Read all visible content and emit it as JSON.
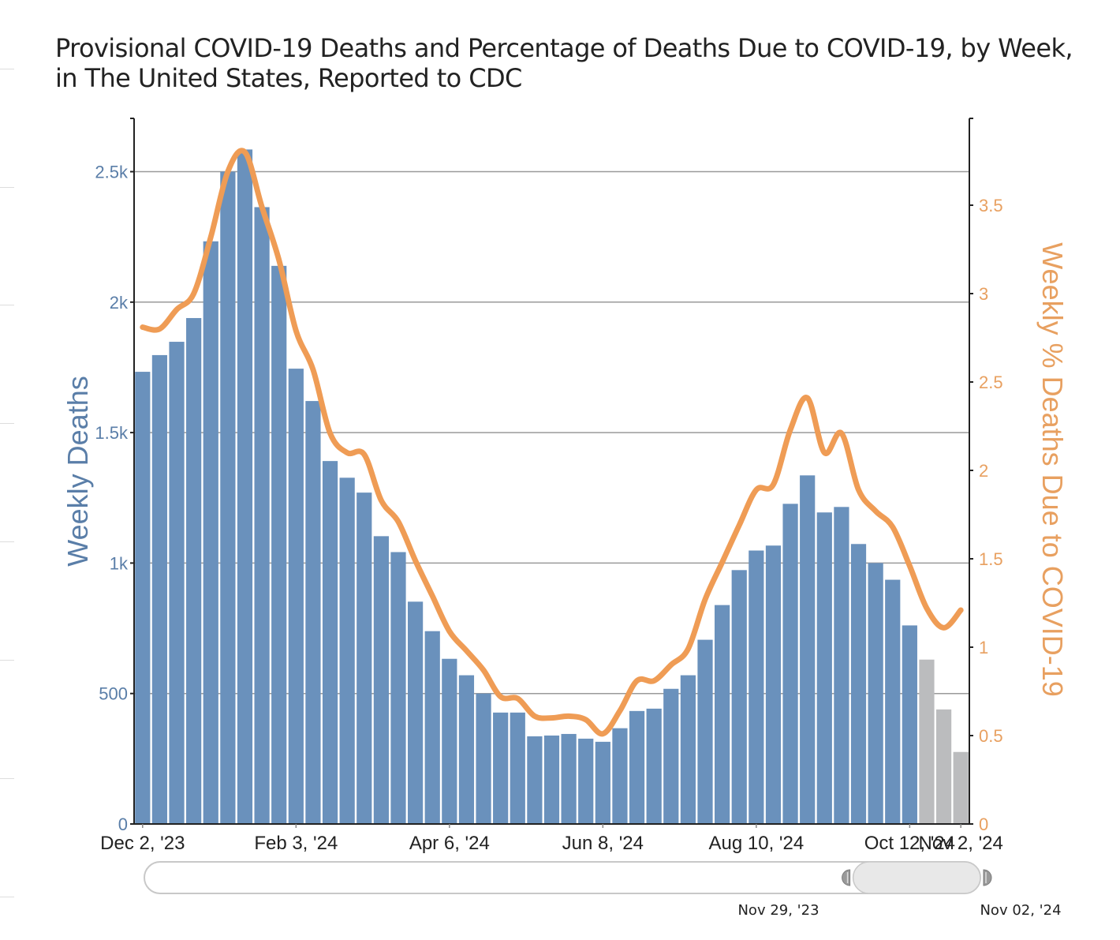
{
  "title": "Provisional COVID-19 Deaths and Percentage of Deaths Due to COVID-19, by Week, in The United States, Reported to CDC",
  "colors": {
    "bar_complete": "#6a91bc",
    "bar_incomplete": "#bbbcbe",
    "line": "#ef9c55",
    "left_axis_text": "#5a7ea8",
    "right_axis_text": "#e8a060",
    "gridline": "#9a9a9a",
    "axis": "#222222"
  },
  "slider": {
    "start_label": "Nov 29, '23",
    "end_label": "Nov 02, '24",
    "selected_fraction_start": 0.81,
    "selected_fraction_end": 1.0
  },
  "chart_data": {
    "type": "bar",
    "title": "Provisional COVID-19 Deaths and Percentage of Deaths Due to COVID-19, by Week, in The United States, Reported to CDC",
    "xlabel": "",
    "ylabel": "Weekly Deaths",
    "y2label": "Weekly % Deaths Due to COVID-19",
    "ylim": [
      0,
      2700
    ],
    "y2lim": [
      0,
      4.0
    ],
    "yticks": [
      0,
      500,
      1000,
      1500,
      2000,
      2500
    ],
    "ytick_labels": [
      "0",
      "500",
      "1k",
      "1.5k",
      "2k",
      "2.5k"
    ],
    "y2ticks": [
      0,
      0.5,
      1,
      1.5,
      2,
      2.5,
      3,
      3.5
    ],
    "y2tick_labels": [
      "0",
      "0.5",
      "1",
      "1.5",
      "2",
      "2.5",
      "3",
      "3.5"
    ],
    "xtick_indices": [
      0,
      9,
      18,
      27,
      36,
      45,
      48
    ],
    "xtick_labels": [
      "Dec 2, '23",
      "Feb 3, '24",
      "Apr 6, '24",
      "Jun 8, '24",
      "Aug 10, '24",
      "Oct 12, '24",
      "Nov 2, '24"
    ],
    "grid": true,
    "legend": "none",
    "categories": [
      "Dec 2, '23",
      "Dec 9, '23",
      "Dec 16, '23",
      "Dec 23, '23",
      "Dec 30, '23",
      "Jan 6, '24",
      "Jan 13, '24",
      "Jan 20, '24",
      "Jan 27, '24",
      "Feb 3, '24",
      "Feb 10, '24",
      "Feb 17, '24",
      "Feb 24, '24",
      "Mar 2, '24",
      "Mar 9, '24",
      "Mar 16, '24",
      "Mar 23, '24",
      "Mar 30, '24",
      "Apr 6, '24",
      "Apr 13, '24",
      "Apr 20, '24",
      "Apr 27, '24",
      "May 4, '24",
      "May 11, '24",
      "May 18, '24",
      "May 25, '24",
      "Jun 1, '24",
      "Jun 8, '24",
      "Jun 15, '24",
      "Jun 22, '24",
      "Jun 29, '24",
      "Jul 6, '24",
      "Jul 13, '24",
      "Jul 20, '24",
      "Jul 27, '24",
      "Aug 3, '24",
      "Aug 10, '24",
      "Aug 17, '24",
      "Aug 24, '24",
      "Aug 31, '24",
      "Sep 7, '24",
      "Sep 14, '24",
      "Sep 21, '24",
      "Sep 28, '24",
      "Oct 5, '24",
      "Oct 12, '24",
      "Oct 19, '24",
      "Oct 26, '24",
      "Nov 2, '24"
    ],
    "series": [
      {
        "name": "Weekly Deaths",
        "type": "bar",
        "axis": "left",
        "values": [
          1733,
          1797,
          1848,
          1939,
          2233,
          2500,
          2585,
          2364,
          2139,
          1745,
          1621,
          1391,
          1327,
          1270,
          1103,
          1042,
          852,
          739,
          633,
          570,
          500,
          427,
          427,
          336,
          339,
          345,
          327,
          315,
          367,
          433,
          442,
          518,
          570,
          706,
          839,
          973,
          1048,
          1067,
          1227,
          1336,
          1194,
          1215,
          1073,
          1000,
          936,
          761,
          630,
          439,
          276
        ],
        "incomplete_from_index": 46
      },
      {
        "name": "Weekly % Deaths Due to COVID-19",
        "type": "line",
        "axis": "right",
        "values": [
          2.81,
          2.8,
          2.91,
          3.0,
          3.32,
          3.69,
          3.8,
          3.49,
          3.19,
          2.79,
          2.57,
          2.21,
          2.1,
          2.09,
          1.83,
          1.71,
          1.49,
          1.29,
          1.09,
          0.98,
          0.87,
          0.72,
          0.71,
          0.61,
          0.6,
          0.61,
          0.59,
          0.51,
          0.64,
          0.81,
          0.81,
          0.9,
          0.99,
          1.27,
          1.48,
          1.69,
          1.89,
          1.92,
          2.23,
          2.41,
          2.1,
          2.21,
          1.89,
          1.77,
          1.68,
          1.46,
          1.22,
          1.11,
          1.21
        ]
      }
    ]
  }
}
